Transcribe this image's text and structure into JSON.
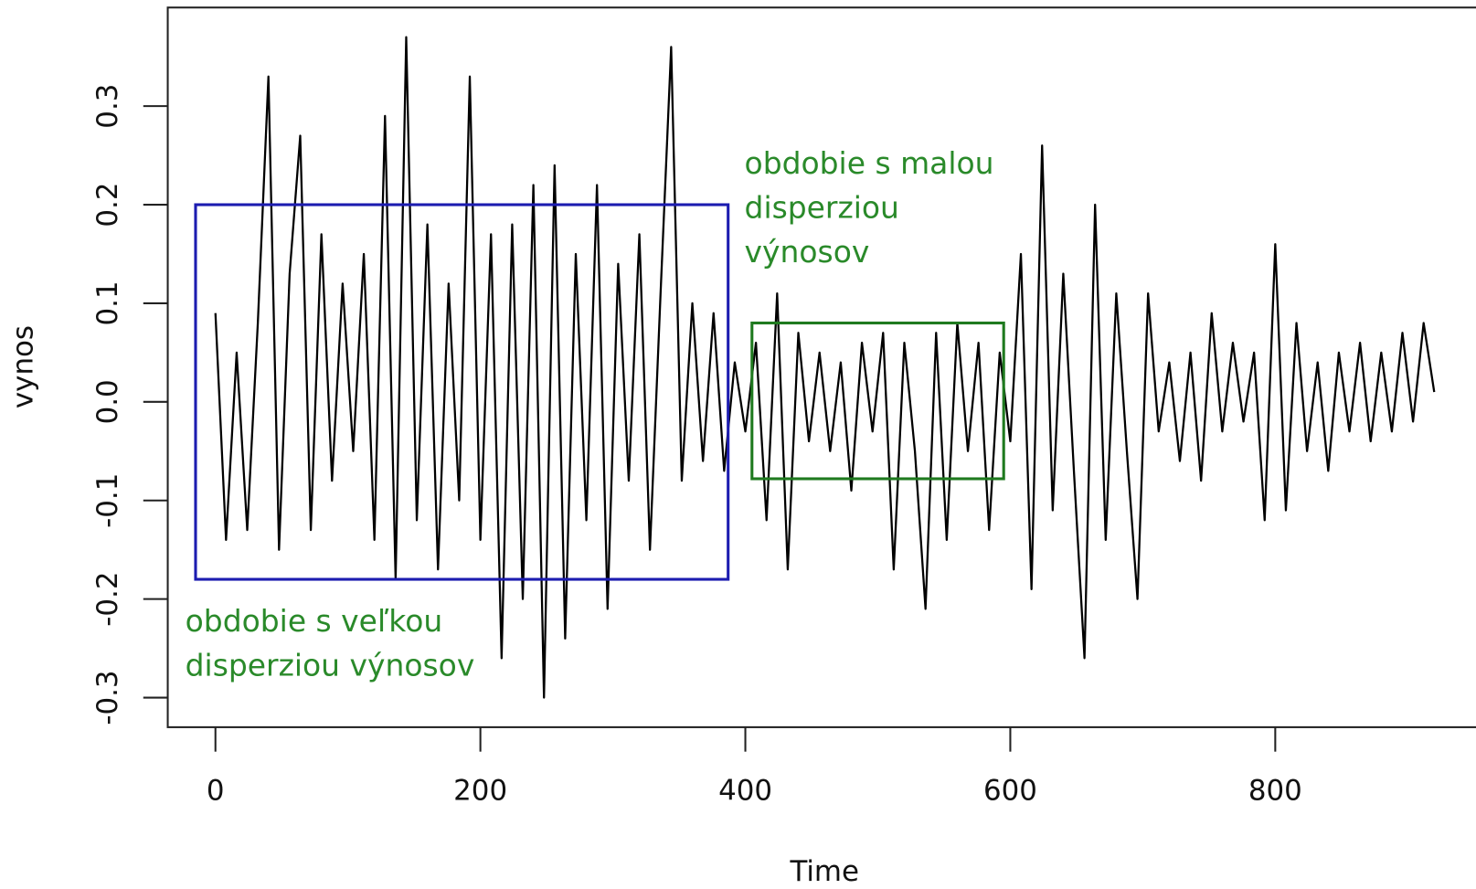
{
  "chart_data": {
    "type": "line",
    "xlabel": "Time",
    "ylabel": "vynos",
    "x": [
      0,
      8,
      16,
      24,
      32,
      40,
      48,
      56,
      64,
      72,
      80,
      88,
      96,
      104,
      112,
      120,
      128,
      136,
      144,
      152,
      160,
      168,
      176,
      184,
      192,
      200,
      208,
      216,
      224,
      232,
      240,
      248,
      256,
      264,
      272,
      280,
      288,
      296,
      304,
      312,
      320,
      328,
      336,
      344,
      352,
      360,
      368,
      376,
      384,
      392,
      400,
      408,
      416,
      424,
      432,
      440,
      448,
      456,
      464,
      472,
      480,
      488,
      496,
      504,
      512,
      520,
      528,
      536,
      544,
      552,
      560,
      568,
      576,
      584,
      592,
      600,
      608,
      616,
      624,
      632,
      640,
      648,
      656,
      664,
      672,
      680,
      688,
      696,
      704,
      712,
      720,
      728,
      736,
      744,
      752,
      760,
      768,
      776,
      784,
      792,
      800,
      808,
      816,
      824,
      832,
      840,
      848,
      856,
      864,
      872,
      880,
      888,
      896,
      904,
      912,
      920
    ],
    "series": [
      {
        "color": "#000000",
        "values": [
          0.09,
          -0.14,
          0.05,
          -0.13,
          0.08,
          0.33,
          -0.15,
          0.13,
          0.27,
          -0.13,
          0.17,
          -0.08,
          0.12,
          -0.05,
          0.15,
          -0.14,
          0.29,
          -0.18,
          0.37,
          -0.12,
          0.18,
          -0.17,
          0.12,
          -0.1,
          0.33,
          -0.14,
          0.17,
          -0.26,
          0.18,
          -0.2,
          0.22,
          -0.3,
          0.24,
          -0.24,
          0.15,
          -0.12,
          0.22,
          -0.21,
          0.14,
          -0.08,
          0.17,
          -0.15,
          0.11,
          0.36,
          -0.08,
          0.1,
          -0.06,
          0.09,
          -0.07,
          0.04,
          -0.03,
          0.06,
          -0.12,
          0.11,
          -0.17,
          0.07,
          -0.04,
          0.05,
          -0.05,
          0.04,
          -0.09,
          0.06,
          -0.03,
          0.07,
          -0.17,
          0.06,
          -0.05,
          -0.21,
          0.07,
          -0.14,
          0.08,
          -0.05,
          0.06,
          -0.13,
          0.05,
          -0.04,
          0.15,
          -0.19,
          0.26,
          -0.11,
          0.13,
          -0.07,
          -0.26,
          0.2,
          -0.14,
          0.11,
          -0.05,
          -0.2,
          0.11,
          -0.03,
          0.04,
          -0.06,
          0.05,
          -0.08,
          0.09,
          -0.03,
          0.06,
          -0.02,
          0.05,
          -0.12,
          0.16,
          -0.11,
          0.08,
          -0.05,
          0.04,
          -0.07,
          0.05,
          -0.03,
          0.06,
          -0.04,
          0.05,
          -0.03,
          0.07,
          -0.02,
          0.08,
          0.01
        ]
      }
    ],
    "xlim": [
      -36,
      962
    ],
    "ylim": [
      -0.33,
      0.4
    ],
    "xticks": [
      0,
      200,
      400,
      600,
      800
    ],
    "yticks": [
      -0.3,
      -0.2,
      -0.1,
      {
        "value": 0,
        "label": "0.0"
      },
      0.1,
      0.2,
      0.3
    ],
    "regions": [
      {
        "x": [
          -15,
          387
        ],
        "y": [
          -0.18,
          0.2
        ],
        "color": "#1c1cb0",
        "label_color": "#2a8a2a",
        "label": [
          "obdobie s veľkou",
          "disperziou výnosov"
        ]
      },
      {
        "x": [
          405,
          595
        ],
        "y": [
          -0.078,
          0.08
        ],
        "color": "#1f7a1f",
        "label_color": "#2a8a2a",
        "label": [
          "obdobie s malou",
          "disperziou",
          "výnosov"
        ]
      }
    ]
  }
}
